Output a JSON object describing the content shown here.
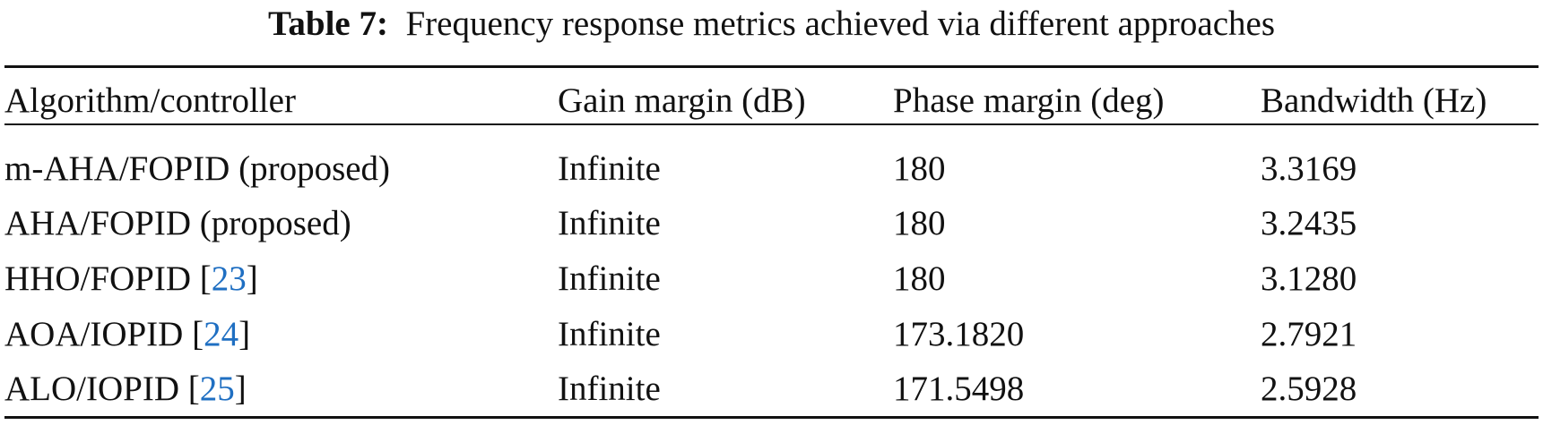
{
  "caption": {
    "label": "Table 7:",
    "text": "Frequency response metrics achieved via different approaches"
  },
  "colors": {
    "link": "#1f6fc2",
    "text": "#111111"
  },
  "headers": [
    "Algorithm/controller",
    "Gain margin (dB)",
    "Phase margin (deg)",
    "Bandwidth (Hz)"
  ],
  "rows": [
    {
      "name": "m-AHA/FOPID (proposed)",
      "ref": "",
      "gain": "Infinite",
      "phase": "180",
      "bandwidth": "3.3169"
    },
    {
      "name": "AHA/FOPID (proposed)",
      "ref": "",
      "gain": "Infinite",
      "phase": "180",
      "bandwidth": "3.2435"
    },
    {
      "name": "HHO/FOPID ",
      "ref": "23",
      "gain": "Infinite",
      "phase": "180",
      "bandwidth": "3.1280"
    },
    {
      "name": "AOA/IOPID ",
      "ref": "24",
      "gain": "Infinite",
      "phase": "173.1820",
      "bandwidth": "2.7921"
    },
    {
      "name": "ALO/IOPID ",
      "ref": "25",
      "gain": "Infinite",
      "phase": "171.5498",
      "bandwidth": "2.5928"
    }
  ]
}
